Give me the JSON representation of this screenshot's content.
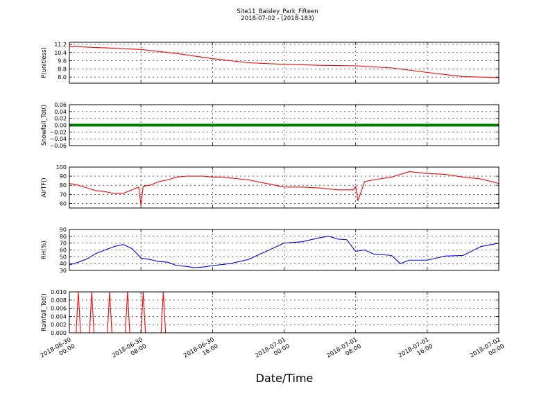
{
  "figure": {
    "title_line1": "Site11_Baisley_Park_Fifteen",
    "title_line2": "2018-07-02 - (2018-183)",
    "xlabel": "Date/Time"
  },
  "x_axis": {
    "range": [
      "2018-06-30 00:00",
      "2018-07-02 00:00"
    ],
    "ticks": [
      {
        "value": "2018-06-30 00:00",
        "line1": "2018-06-30",
        "line2": "00:00"
      },
      {
        "value": "2018-06-30 08:00",
        "line1": "2018-06-30",
        "line2": "08:00"
      },
      {
        "value": "2018-06-30 16:00",
        "line1": "2018-06-30",
        "line2": "16:00"
      },
      {
        "value": "2018-07-01 00:00",
        "line1": "2018-07-01",
        "line2": "00:00"
      },
      {
        "value": "2018-07-01 08:00",
        "line1": "2018-07-01",
        "line2": "08:00"
      },
      {
        "value": "2018-07-01 16:00",
        "line1": "2018-07-01",
        "line2": "16:00"
      },
      {
        "value": "2018-07-02 00:00",
        "line1": "2018-07-02",
        "line2": "00:00"
      }
    ]
  },
  "chart_data": [
    {
      "type": "line",
      "ylabel": "P(unitless)",
      "ylim": [
        7.4,
        11.4
      ],
      "yticks": [
        8.0,
        8.8,
        9.6,
        10.4,
        11.2
      ],
      "ytick_labels": [
        "8.0",
        "8.8",
        "9.6",
        "10.4",
        "11.2"
      ],
      "grid": true,
      "series": [
        {
          "color": "#ff0000",
          "x": [
            "2018-06-30 00:00",
            "2018-06-30 04:00",
            "2018-06-30 08:00",
            "2018-06-30 12:00",
            "2018-06-30 16:00",
            "2018-06-30 20:00",
            "2018-07-01 00:00",
            "2018-07-01 04:00",
            "2018-07-01 08:00",
            "2018-07-01 12:00",
            "2018-07-01 16:00",
            "2018-07-01 20:00",
            "2018-07-02 00:00"
          ],
          "y": [
            11.0,
            10.85,
            10.7,
            10.3,
            9.8,
            9.4,
            9.25,
            9.15,
            9.1,
            8.9,
            8.45,
            8.05,
            7.95
          ]
        }
      ]
    },
    {
      "type": "line",
      "ylabel": "Snowfall_Tot()",
      "ylim": [
        -0.06,
        0.06
      ],
      "yticks": [
        -0.06,
        -0.04,
        -0.02,
        0.0,
        0.02,
        0.04,
        0.06
      ],
      "ytick_labels": [
        "−0.06",
        "−0.04",
        "−0.02",
        "0.00",
        "0.02",
        "0.04",
        "0.06"
      ],
      "grid": true,
      "series": [
        {
          "color": "#008000",
          "x": [
            "2018-06-30 00:00",
            "2018-07-02 00:00"
          ],
          "y": [
            0.0,
            0.0
          ]
        }
      ]
    },
    {
      "type": "line",
      "ylabel": "AirTF()",
      "ylim": [
        55,
        100
      ],
      "yticks": [
        60,
        70,
        80,
        90,
        100
      ],
      "ytick_labels": [
        "60",
        "70",
        "80",
        "90",
        "100"
      ],
      "grid": true,
      "series": [
        {
          "color": "#ff0000",
          "x": [
            "2018-06-30 00:00",
            "2018-06-30 01:00",
            "2018-06-30 02:00",
            "2018-06-30 03:00",
            "2018-06-30 04:00",
            "2018-06-30 05:00",
            "2018-06-30 06:00",
            "2018-06-30 07:00",
            "2018-06-30 07:45",
            "2018-06-30 08:00",
            "2018-06-30 08:15",
            "2018-06-30 09:00",
            "2018-06-30 10:00",
            "2018-06-30 11:00",
            "2018-06-30 12:00",
            "2018-06-30 13:00",
            "2018-06-30 14:00",
            "2018-06-30 15:00",
            "2018-06-30 16:00",
            "2018-06-30 17:00",
            "2018-06-30 18:00",
            "2018-06-30 20:00",
            "2018-06-30 22:00",
            "2018-07-01 00:00",
            "2018-07-01 02:00",
            "2018-07-01 04:00",
            "2018-07-01 06:00",
            "2018-07-01 07:45",
            "2018-07-01 08:00",
            "2018-07-01 08:15",
            "2018-07-01 09:00",
            "2018-07-01 10:00",
            "2018-07-01 12:00",
            "2018-07-01 13:00",
            "2018-07-01 14:00",
            "2018-07-01 16:00",
            "2018-07-01 18:00",
            "2018-07-01 20:00",
            "2018-07-01 22:00",
            "2018-07-02 00:00"
          ],
          "y": [
            82,
            80,
            77,
            74,
            73,
            71,
            71,
            75,
            78,
            58,
            79,
            80,
            84,
            86,
            89,
            90,
            90,
            90,
            89,
            89,
            88,
            86,
            82,
            78,
            78,
            77,
            75,
            75,
            79,
            63,
            84,
            86,
            89,
            92,
            95,
            93,
            92,
            89,
            87,
            82
          ]
        }
      ]
    },
    {
      "type": "line",
      "ylabel": "RH(%)",
      "ylim": [
        30,
        90
      ],
      "yticks": [
        30,
        40,
        50,
        60,
        70,
        80,
        90
      ],
      "ytick_labels": [
        "30",
        "40",
        "50",
        "60",
        "70",
        "80",
        "90"
      ],
      "grid": true,
      "series": [
        {
          "color": "#0000ff",
          "x": [
            "2018-06-30 00:00",
            "2018-06-30 01:00",
            "2018-06-30 02:00",
            "2018-06-30 03:00",
            "2018-06-30 04:00",
            "2018-06-30 05:00",
            "2018-06-30 06:00",
            "2018-06-30 07:00",
            "2018-06-30 08:00",
            "2018-06-30 09:00",
            "2018-06-30 10:00",
            "2018-06-30 11:00",
            "2018-06-30 12:00",
            "2018-06-30 13:00",
            "2018-06-30 14:00",
            "2018-06-30 15:00",
            "2018-06-30 16:00",
            "2018-06-30 18:00",
            "2018-06-30 20:00",
            "2018-06-30 22:00",
            "2018-07-01 00:00",
            "2018-07-01 02:00",
            "2018-07-01 04:00",
            "2018-07-01 05:00",
            "2018-07-01 06:00",
            "2018-07-01 07:00",
            "2018-07-01 08:00",
            "2018-07-01 09:00",
            "2018-07-01 10:00",
            "2018-07-01 12:00",
            "2018-07-01 13:00",
            "2018-07-01 14:00",
            "2018-07-01 16:00",
            "2018-07-01 18:00",
            "2018-07-01 20:00",
            "2018-07-01 22:00",
            "2018-07-02 00:00"
          ],
          "y": [
            38,
            42,
            47,
            55,
            60,
            65,
            68,
            62,
            48,
            46,
            43,
            42,
            37,
            36,
            34,
            35,
            37,
            40,
            46,
            58,
            70,
            72,
            78,
            80,
            76,
            75,
            58,
            60,
            54,
            52,
            40,
            45,
            45,
            51,
            52,
            65,
            70
          ]
        }
      ]
    },
    {
      "type": "line",
      "ylabel": "Rainfall_Tot()",
      "ylim": [
        0.0,
        0.01
      ],
      "yticks": [
        0.0,
        0.002,
        0.004,
        0.006,
        0.008,
        0.01
      ],
      "ytick_labels": [
        "0.000",
        "0.002",
        "0.004",
        "0.006",
        "0.008",
        "0.010"
      ],
      "grid": true,
      "series": [
        {
          "color": "#ff0000",
          "x": [
            "2018-06-30 00:00",
            "2018-06-30 00:45",
            "2018-06-30 01:00",
            "2018-06-30 01:15",
            "2018-06-30 02:15",
            "2018-06-30 02:30",
            "2018-06-30 02:45",
            "2018-06-30 04:15",
            "2018-06-30 04:30",
            "2018-06-30 04:45",
            "2018-06-30 06:15",
            "2018-06-30 06:30",
            "2018-06-30 06:45",
            "2018-06-30 08:00",
            "2018-06-30 08:15",
            "2018-06-30 08:30",
            "2018-06-30 10:15",
            "2018-06-30 10:30",
            "2018-06-30 10:45",
            "2018-07-02 00:00"
          ],
          "y": [
            0,
            0,
            0.01,
            0,
            0,
            0.01,
            0,
            0,
            0.01,
            0,
            0,
            0.01,
            0,
            0,
            0.01,
            0,
            0,
            0.01,
            0,
            0
          ]
        }
      ]
    }
  ]
}
